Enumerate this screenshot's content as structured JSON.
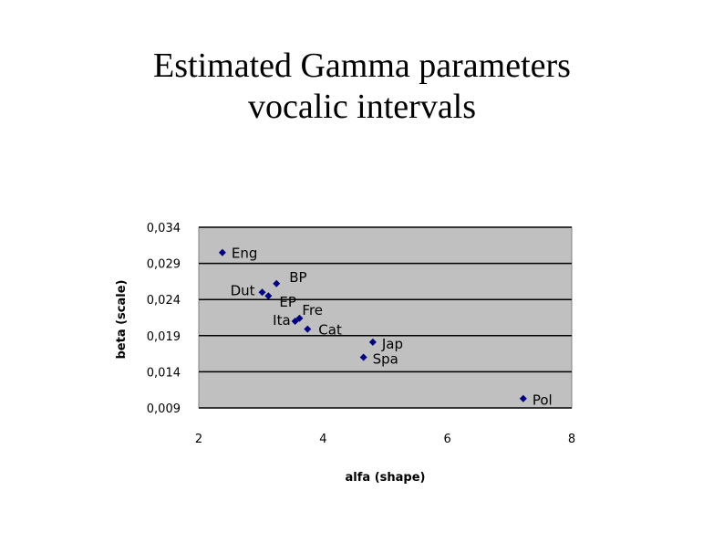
{
  "slide": {
    "title_line1": "Estimated Gamma parameters",
    "title_line2": "vocalic intervals"
  },
  "chart_data": {
    "type": "scatter",
    "title": "",
    "xlabel": "alfa (shape)",
    "ylabel": "beta (scale)",
    "xlim": [
      2,
      8
    ],
    "ylim": [
      0.009,
      0.034
    ],
    "xticks": [
      2,
      4,
      6,
      8
    ],
    "xtick_labels": [
      "2",
      "4",
      "6",
      "8"
    ],
    "yticks": [
      0.009,
      0.014,
      0.019,
      0.024,
      0.029,
      0.034
    ],
    "ytick_labels": [
      "0,009",
      "0,014",
      "0,019",
      "0,024",
      "0,029",
      "0,034"
    ],
    "grid": "horizontal",
    "plot_background": "#c0c0c0",
    "grid_color": "#000000",
    "marker_color": "#000080",
    "points": [
      {
        "label": "Eng",
        "x": 2.38,
        "y": 0.0305
      },
      {
        "label": "BP",
        "x": 3.25,
        "y": 0.0262
      },
      {
        "label": "Dut",
        "x": 3.02,
        "y": 0.025
      },
      {
        "label": "EP",
        "x": 3.12,
        "y": 0.0245
      },
      {
        "label": "Fre",
        "x": 3.62,
        "y": 0.0214
      },
      {
        "label": "Ita",
        "x": 3.55,
        "y": 0.021
      },
      {
        "label": "Cat",
        "x": 3.75,
        "y": 0.0199
      },
      {
        "label": "Jap",
        "x": 4.8,
        "y": 0.0181
      },
      {
        "label": "Spa",
        "x": 4.65,
        "y": 0.016
      },
      {
        "label": "Pol",
        "x": 7.22,
        "y": 0.0103
      }
    ]
  }
}
